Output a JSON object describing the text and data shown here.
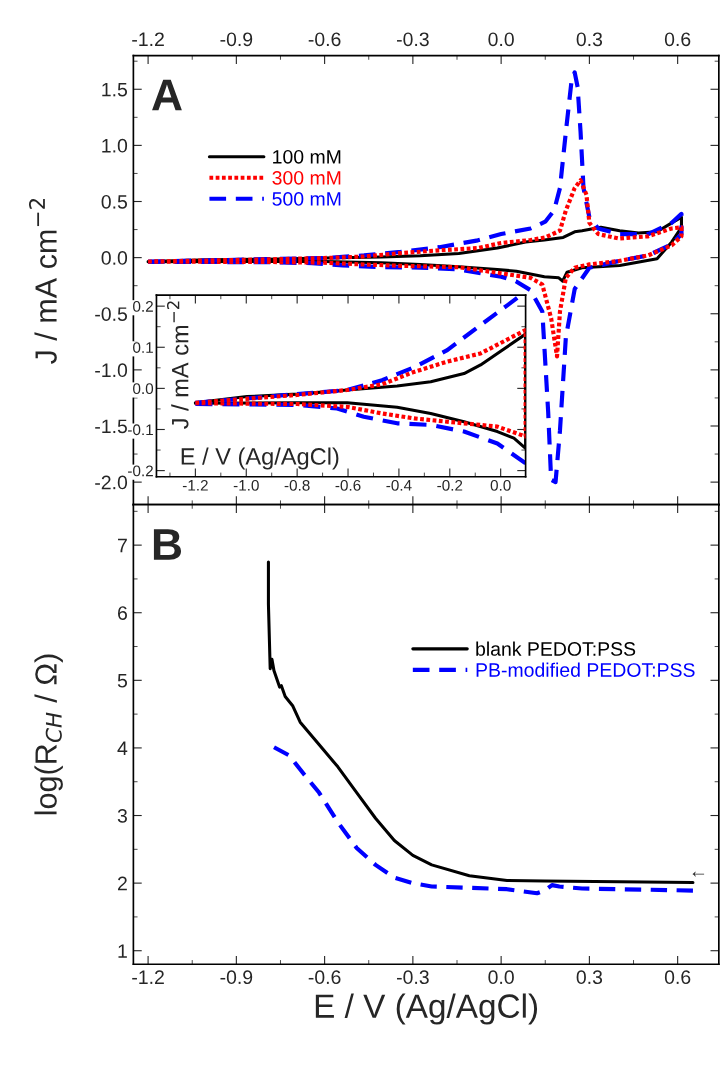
{
  "chart_data": [
    {
      "type": "line",
      "title": "A",
      "ylabel": "J / mA cm$^{−2}$",
      "legend": "top left",
      "xlim": [
        -1.25,
        0.74
      ],
      "xticks": [
        {
          "value": -1.2,
          "label": "-1.2"
        },
        {
          "value": -0.9,
          "label": "-0.9"
        },
        {
          "value": -0.6,
          "label": "-0.6"
        },
        {
          "value": -0.3,
          "label": "-0.3"
        },
        {
          "value": 0,
          "label": "0.0"
        },
        {
          "value": 0.3,
          "label": "0.3"
        },
        {
          "value": 0.6,
          "label": "0.6"
        }
      ],
      "ylim": [
        -2.2,
        1.8
      ],
      "yticks": [
        {
          "value": -2,
          "label": "-2.0"
        },
        {
          "value": -1.5,
          "label": "-1.5"
        },
        {
          "value": -1,
          "label": "-1.0"
        },
        {
          "value": -0.5,
          "label": "-0.5"
        },
        {
          "value": 0,
          "label": "0.0"
        },
        {
          "value": 0.5,
          "label": "0.5"
        },
        {
          "value": 1,
          "label": "1.0"
        },
        {
          "value": 1.5,
          "label": "1.5"
        }
      ],
      "series": [
        {
          "name": "100 mM",
          "color": "#000000",
          "line_style": "solid",
          "x": [
            -1.2,
            -0.997,
            -0.8,
            -0.603,
            -0.407,
            -0.275,
            -0.144,
            -0.013,
            0.083,
            0.147,
            0.211,
            0.25,
            0.275,
            0.339,
            0.403,
            0.467,
            0.53,
            0.58,
            0.613,
            0.613,
            0.58,
            0.53,
            0.403,
            0.275,
            0.224,
            0.209,
            0.196,
            0.147,
            0.052,
            -0.013,
            -0.144,
            -0.275,
            -0.407,
            -0.603,
            -0.8,
            -1.2
          ],
          "values": [
            -0.035,
            -0.02,
            -0.014,
            -0.004,
            0.006,
            0.016,
            0.036,
            0.085,
            0.14,
            0.157,
            0.18,
            0.23,
            0.24,
            0.27,
            0.24,
            0.22,
            0.23,
            0.31,
            0.36,
            0.27,
            0.14,
            -0.01,
            -0.07,
            -0.09,
            -0.13,
            -0.21,
            -0.18,
            -0.17,
            -0.121,
            -0.105,
            -0.081,
            -0.061,
            -0.046,
            -0.035,
            -0.035,
            -0.036
          ]
        },
        {
          "name": "300 mM",
          "color": "#ff0000",
          "line_style": "dotted",
          "x": [
            -1.2,
            -0.8,
            -0.603,
            -0.466,
            -0.341,
            -0.21,
            -0.079,
            0.0,
            0.1,
            0.15,
            0.2,
            0.22,
            0.25,
            0.27,
            0.29,
            0.3,
            0.33,
            0.4,
            0.5,
            0.58,
            0.613,
            0.613,
            0.58,
            0.5,
            0.4,
            0.3,
            0.25,
            0.22,
            0.2,
            0.19,
            0.17,
            0.14,
            0.1,
            0.0,
            -0.144,
            -0.341,
            -0.466,
            -0.603,
            -0.8,
            -1.2
          ],
          "values": [
            -0.035,
            -0.016,
            -0.004,
            0.01,
            0.04,
            0.065,
            0.085,
            0.13,
            0.157,
            0.18,
            0.24,
            0.42,
            0.62,
            0.69,
            0.56,
            0.31,
            0.21,
            0.17,
            0.19,
            0.26,
            0.27,
            0.19,
            0.11,
            0.02,
            -0.03,
            -0.06,
            -0.09,
            -0.18,
            -0.48,
            -0.88,
            -0.54,
            -0.24,
            -0.18,
            -0.14,
            -0.085,
            -0.073,
            -0.061,
            -0.045,
            -0.038,
            -0.036
          ]
        },
        {
          "name": "500 mM",
          "color": "#0000ff",
          "line_style": "dashed",
          "x": [
            -1.2,
            -0.8,
            -0.603,
            -0.466,
            -0.341,
            -0.21,
            -0.079,
            0.0,
            0.1,
            0.15,
            0.18,
            0.2,
            0.22,
            0.24,
            0.25,
            0.26,
            0.27,
            0.28,
            0.3,
            0.33,
            0.4,
            0.5,
            0.58,
            0.613,
            0.613,
            0.58,
            0.5,
            0.4,
            0.3,
            0.25,
            0.22,
            0.2,
            0.185,
            0.17,
            0.16,
            0.14,
            0.1,
            0.05,
            0.0,
            -0.144,
            -0.275,
            -0.407,
            -0.538,
            -0.643,
            -0.8,
            -1.2
          ],
          "values": [
            -0.035,
            -0.014,
            -0.004,
            0.02,
            0.051,
            0.093,
            0.154,
            0.21,
            0.26,
            0.32,
            0.42,
            0.62,
            1.12,
            1.59,
            1.65,
            1.52,
            1.12,
            0.62,
            0.36,
            0.26,
            0.21,
            0.21,
            0.31,
            0.39,
            0.21,
            0.12,
            0.02,
            -0.03,
            -0.09,
            -0.28,
            -0.71,
            -1.54,
            -2.0,
            -1.98,
            -1.38,
            -0.48,
            -0.29,
            -0.21,
            -0.17,
            -0.105,
            -0.089,
            -0.085,
            -0.069,
            -0.049,
            -0.04,
            -0.038
          ]
        }
      ]
    },
    {
      "type": "line",
      "xlabel": "E / V (Ag/AgCl)",
      "ylabel": "J / mA cm$^{−2}$",
      "xlim": [
        -1.353,
        0.098
      ],
      "xticks": [
        {
          "value": -1.2,
          "label": "-1.2"
        },
        {
          "value": -1.0,
          "label": "-1.0"
        },
        {
          "value": -0.8,
          "label": "-0.8"
        },
        {
          "value": -0.6,
          "label": "-0.6"
        },
        {
          "value": -0.4,
          "label": "-0.4"
        },
        {
          "value": -0.2,
          "label": "-0.2"
        },
        {
          "value": 0,
          "label": "0.0"
        }
      ],
      "ylim": [
        -0.215,
        0.227
      ],
      "yticks": [
        {
          "value": -0.2,
          "label": "-0.2"
        },
        {
          "value": -0.1,
          "label": "-0.1"
        },
        {
          "value": 0,
          "label": "0.0"
        },
        {
          "value": 0.1,
          "label": "0.1"
        },
        {
          "value": 0.2,
          "label": "0.2"
        }
      ],
      "series": [
        {
          "color": "#000000",
          "line_style": "solid",
          "x": [
            -1.2,
            -0.997,
            -0.8,
            -0.603,
            -0.407,
            -0.275,
            -0.144,
            -0.079,
            -0.013,
            0.098,
            0.098,
            0.052,
            -0.013,
            -0.144,
            -0.275,
            -0.407,
            -0.603,
            -0.8,
            -1.2
          ],
          "values": [
            -0.035,
            -0.02,
            -0.014,
            -0.004,
            0.006,
            0.016,
            0.036,
            0.057,
            0.085,
            0.132,
            -0.146,
            -0.121,
            -0.105,
            -0.081,
            -0.061,
            -0.046,
            -0.035,
            -0.035,
            -0.036
          ]
        },
        {
          "color": "#ff0000",
          "line_style": "dotted",
          "x": [
            -1.2,
            -0.8,
            -0.603,
            -0.466,
            -0.341,
            -0.21,
            -0.079,
            0.098,
            0.098,
            -0.013,
            -0.144,
            -0.341,
            -0.466,
            -0.603,
            -0.8,
            -1.2
          ],
          "values": [
            -0.035,
            -0.016,
            -0.004,
            0.01,
            0.04,
            0.065,
            0.085,
            0.142,
            -0.117,
            -0.093,
            -0.085,
            -0.073,
            -0.061,
            -0.045,
            -0.038,
            -0.036
          ]
        },
        {
          "color": "#0000ff",
          "line_style": "dashed",
          "x": [
            -1.2,
            -0.8,
            -0.603,
            -0.466,
            -0.341,
            -0.21,
            -0.079,
            0.026,
            0.065,
            null,
            0.098,
            -0.013,
            -0.144,
            -0.275,
            -0.407,
            -0.538,
            -0.643,
            -0.8,
            -1.2
          ],
          "values": [
            -0.035,
            -0.014,
            -0.004,
            0.02,
            0.051,
            0.093,
            0.154,
            0.202,
            0.22,
            null,
            -0.182,
            -0.134,
            -0.105,
            -0.089,
            -0.085,
            -0.069,
            -0.049,
            -0.04,
            -0.038
          ]
        }
      ]
    },
    {
      "type": "line",
      "title": "B",
      "xlabel": "E / V (Ag/AgCl)",
      "ylabel": "log(R$_{CH}$ / Ω)",
      "legend": "top right",
      "xlim": [
        -1.25,
        0.74
      ],
      "xticks": [
        {
          "value": -1.2,
          "label": "-1.2"
        },
        {
          "value": -0.9,
          "label": "-0.9"
        },
        {
          "value": -0.6,
          "label": "-0.6"
        },
        {
          "value": -0.3,
          "label": "-0.3"
        },
        {
          "value": 0,
          "label": "0.0"
        },
        {
          "value": 0.3,
          "label": "0.3"
        },
        {
          "value": 0.6,
          "label": "0.6"
        }
      ],
      "ylim": [
        0.8,
        7.6
      ],
      "yticks": [
        1,
        2,
        3,
        4,
        5,
        6,
        7
      ],
      "annotations": [
        "←"
      ],
      "series": [
        {
          "name": "blank PEDOT:PSS",
          "color": "#000000",
          "line_style": "solid",
          "x": [
            -0.791,
            -0.791,
            -0.785,
            -0.779,
            -0.772,
            -0.753,
            -0.747,
            -0.734,
            -0.708,
            -0.683,
            -0.619,
            -0.555,
            -0.491,
            -0.427,
            -0.363,
            -0.3,
            -0.236,
            -0.108,
            0.02,
            0.147,
            0.403,
            0.652
          ],
          "values": [
            6.75,
            6.13,
            5.17,
            5.31,
            5.14,
            4.9,
            4.92,
            4.76,
            4.62,
            4.38,
            4.05,
            3.72,
            3.34,
            2.96,
            2.63,
            2.41,
            2.27,
            2.11,
            2.04,
            2.03,
            2.02,
            2.01
          ]
        },
        {
          "name": "PB-modified PEDOT:PSS",
          "color": "#0000ff",
          "line_style": "dashed",
          "x": [
            -0.772,
            -0.721,
            -0.67,
            -0.619,
            -0.555,
            -0.491,
            -0.427,
            -0.363,
            -0.3,
            -0.236,
            -0.108,
            0.02,
            0.122,
            0.147,
            0.173,
            0.198,
            0.275,
            0.403,
            0.652
          ],
          "values": [
            4.01,
            3.89,
            3.61,
            3.34,
            2.9,
            2.52,
            2.27,
            2.08,
            2.0,
            1.95,
            1.93,
            1.91,
            1.85,
            1.89,
            1.97,
            1.95,
            1.92,
            1.91,
            1.89
          ]
        }
      ]
    }
  ]
}
